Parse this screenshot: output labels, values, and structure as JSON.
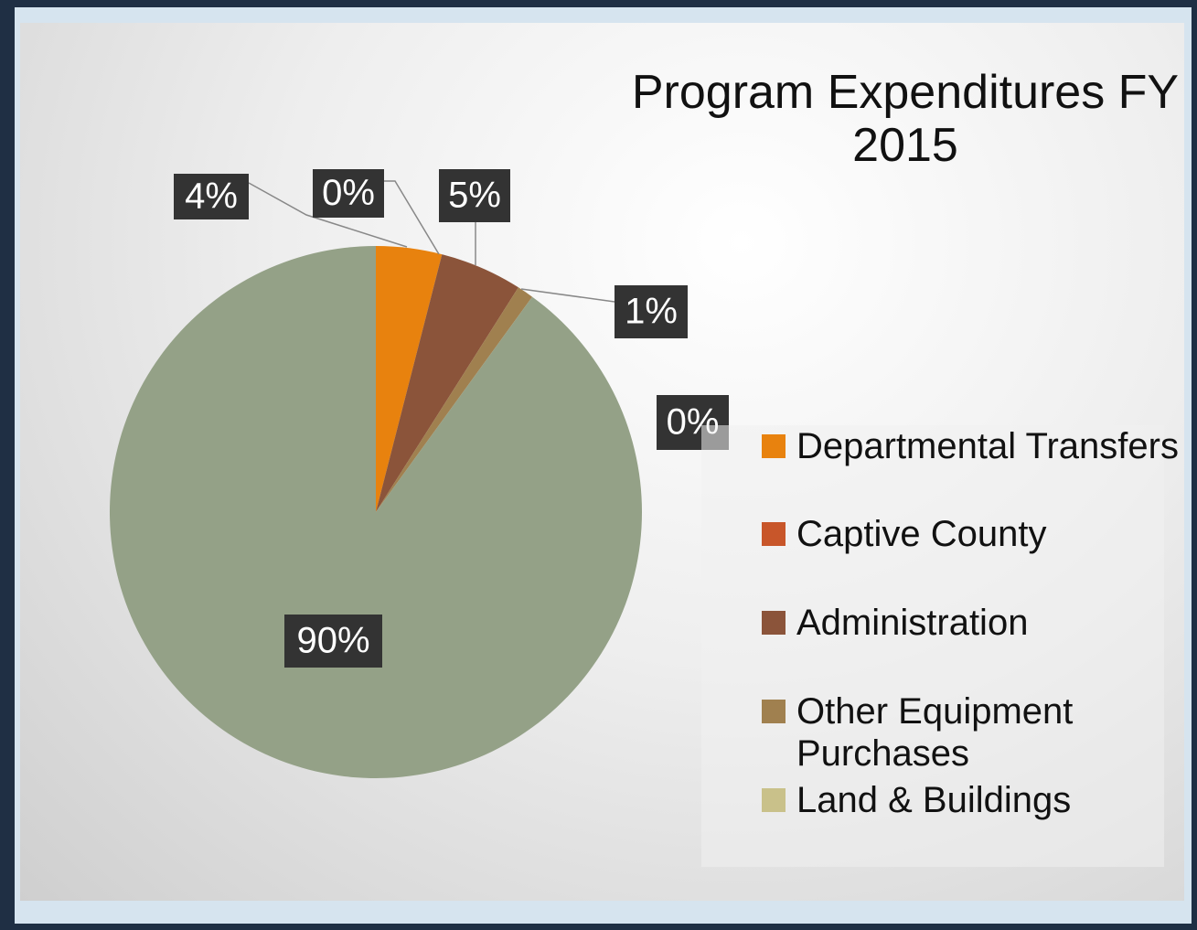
{
  "chart_data": {
    "type": "pie",
    "title": "Program Expenditures FY 2015",
    "categories": [
      "Departmental Transfers",
      "Captive County",
      "Administration",
      "Other Equipment Purchases",
      "Land & Buildings",
      null
    ],
    "values": [
      4,
      0,
      5,
      1,
      0,
      90
    ],
    "value_labels": [
      "4%",
      "0%",
      "5%",
      "1%",
      "0%",
      "90%"
    ],
    "colors": [
      "#e8820e",
      "#c8562a",
      "#8b543a",
      "#a0804f",
      "#c9c18a",
      "#94a187"
    ],
    "legend": "right"
  }
}
